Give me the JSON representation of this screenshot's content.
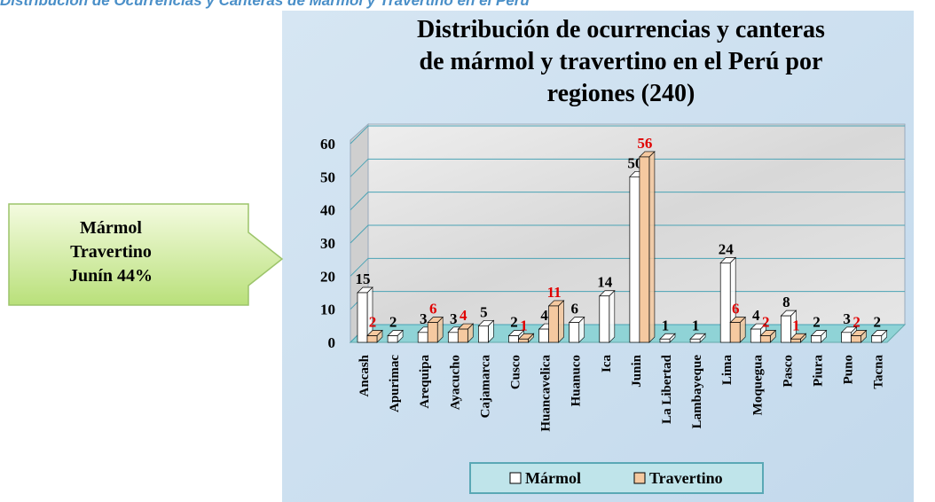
{
  "header": {
    "text": "Distribución de Ocurrencias y Canteras de Mármol y Travertino en el Perú"
  },
  "callout": {
    "lines": [
      "Mármol",
      "Travertino",
      "Junín 44%"
    ]
  },
  "chart_data": {
    "type": "bar3d",
    "title": [
      "Distribución de ocurrencias y canteras",
      "de mármol y travertino en el Perú por",
      "regiones (240)"
    ],
    "categories": [
      "Ancash",
      "Apurimac",
      "Arequipa",
      "Ayacucho",
      "Cajamarca",
      "Cusco",
      "Huancavelica",
      "Huanuco",
      "Ica",
      "Junin",
      "La Libertad",
      "Lambayeque",
      "Lima",
      "Moquegua",
      "Pasco",
      "Piura",
      "Puno",
      "Tacna"
    ],
    "series": [
      {
        "name": "Mármol",
        "color": "#ffffff",
        "label_color": "#000000",
        "values": [
          15,
          2,
          3,
          3,
          5,
          2,
          4,
          6,
          14,
          50,
          1,
          1,
          24,
          4,
          8,
          2,
          3,
          2
        ]
      },
      {
        "name": "Travertino",
        "color": "#f5c9a0",
        "label_color": "#e00000",
        "values": [
          2,
          null,
          6,
          4,
          null,
          1,
          11,
          null,
          null,
          56,
          null,
          null,
          6,
          2,
          1,
          null,
          2,
          null
        ]
      }
    ],
    "ylim": [
      0,
      60
    ],
    "yticks": [
      0,
      10,
      20,
      30,
      40,
      50,
      60
    ],
    "grid": true
  }
}
